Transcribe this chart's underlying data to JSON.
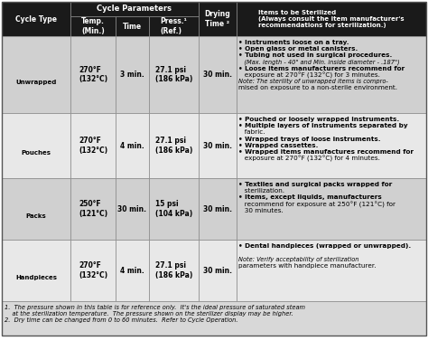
{
  "title_header": "Cycle Parameters",
  "items_header": "Items to be Sterilized",
  "items_subheader": "(Always consult the item manufacturer's\nrecommendations for sterilization.)",
  "col_headers": [
    "Cycle Type",
    "Temp.\n(Min.)",
    "Time",
    "Press.¹\n(Ref.)",
    "Drying\nTime ²",
    "Items to be Sterilized\n(Always consult the item manufacturer's\nrecommendations for sterilization.)"
  ],
  "rows": [
    {
      "cycle_type": "Unwrapped",
      "temp": "270°F\n(132°C)",
      "time": "3 min.",
      "press": "27.1 psi\n(186 kPa)",
      "dry": "30 min.",
      "items": "• Instruments loose on a tray.\n• Open glass or metal canisters.\n• Tubing not used in surgical procedures.\n   (Max. length - 40\" and Min. inside diameter - .187\")\n• Loose items manufacturers recommend for\n   exposure at 270°F (132°C) for 3 minutes.\nNote: The sterility of unwrapped items is compro-\nmised on exposure to a non-sterile environment."
    },
    {
      "cycle_type": "Pouches",
      "temp": "270°F\n(132°C)",
      "time": "4 min.",
      "press": "27.1 psi\n(186 kPa)",
      "dry": "30 min.",
      "items": "• Pouched or loosely wrapped instruments.\n• Multiple layers of instruments separated by\n   fabric.\n• Wrapped trays of loose instruments.\n• Wrapped cassettes.\n• Wrapped items manufactures recommend for\n   exposure at 270°F (132°C) for 4 minutes."
    },
    {
      "cycle_type": "Packs",
      "temp": "250°F\n(121°C)",
      "time": "30 min.",
      "press": "15 psi\n(104 kPa)",
      "dry": "30 min.",
      "items": "• Textiles and surgical packs wrapped for\n   sterilization.\n• Items, except liquids, manufacturers\n   recommend for exposure at 250°F (121°C) for\n   30 minutes."
    },
    {
      "cycle_type": "Handpieces",
      "temp": "270°F\n(132°C)",
      "time": "4 min.",
      "press": "27.1 psi\n(186 kPa)",
      "dry": "30 min.",
      "items": "• Dental handpieces (wrapped or unwrapped).\n\nNote: Verify acceptability of sterilization\nparameters with handpiece manufacturer."
    }
  ],
  "footnotes": [
    "1.  The pressure shown in this table is for reference only.  It's the ideal pressure of saturated steam\n    at the sterilization temperature.  The pressure shown on the sterilizer display may be higher.",
    "2.  Dry time can be changed from 0 to 60 minutes.  Refer to Cycle Operation."
  ],
  "header_bg": "#1a1a1a",
  "header_fg": "#ffffff",
  "row_bg_even": "#d0d0d0",
  "row_bg_odd": "#e8e8e8",
  "border_color": "#888888",
  "fig_bg": "#ffffff"
}
